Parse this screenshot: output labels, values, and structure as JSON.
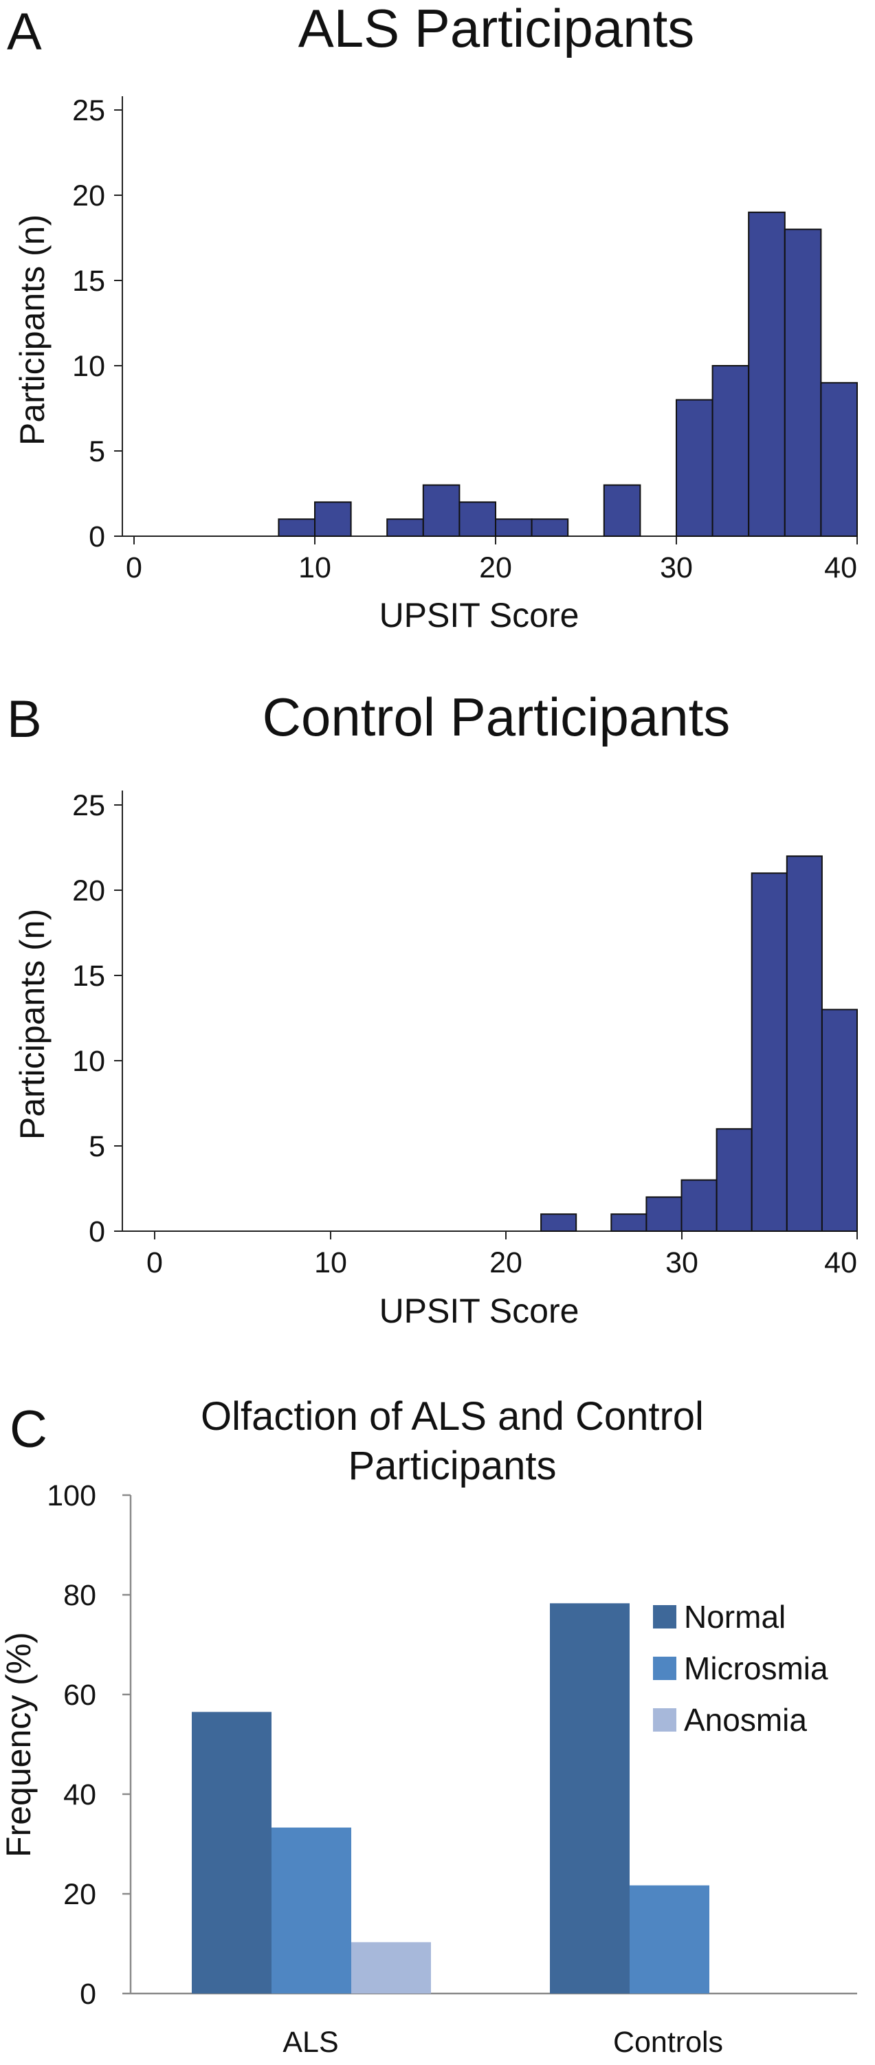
{
  "chart_data": [
    {
      "type": "bar",
      "panel": "A",
      "title": "ALS Participants",
      "xlabel": "UPSIT Score",
      "ylabel": "Participants (n)",
      "xlim": [
        0,
        40
      ],
      "ylim": [
        0,
        25
      ],
      "xticks": [
        "0",
        "10",
        "20",
        "30",
        "40"
      ],
      "yticks": [
        "0",
        "5",
        "10",
        "15",
        "20",
        "25"
      ],
      "bin_width": 2,
      "bins": [
        {
          "x0": 8,
          "x1": 10,
          "count": 1
        },
        {
          "x0": 10,
          "x1": 12,
          "count": 2
        },
        {
          "x0": 14,
          "x1": 16,
          "count": 1
        },
        {
          "x0": 16,
          "x1": 18,
          "count": 3
        },
        {
          "x0": 18,
          "x1": 20,
          "count": 2
        },
        {
          "x0": 20,
          "x1": 22,
          "count": 1
        },
        {
          "x0": 22,
          "x1": 24,
          "count": 1
        },
        {
          "x0": 26,
          "x1": 28,
          "count": 3
        },
        {
          "x0": 30,
          "x1": 32,
          "count": 8
        },
        {
          "x0": 32,
          "x1": 34,
          "count": 10
        },
        {
          "x0": 34,
          "x1": 36,
          "count": 19
        },
        {
          "x0": 36,
          "x1": 38,
          "count": 18
        },
        {
          "x0": 38,
          "x1": 40,
          "count": 9
        }
      ],
      "bar_color": "#3b4896",
      "grid": false
    },
    {
      "type": "bar",
      "panel": "B",
      "title": "Control Participants",
      "xlabel": "UPSIT Score",
      "ylabel": "Participants (n)",
      "xlim": [
        0,
        40
      ],
      "ylim": [
        0,
        25
      ],
      "xticks": [
        "0",
        "10",
        "20",
        "30",
        "40"
      ],
      "yticks": [
        "0",
        "5",
        "10",
        "15",
        "20",
        "25"
      ],
      "bin_width": 2,
      "bins": [
        {
          "x0": 22,
          "x1": 24,
          "count": 1
        },
        {
          "x0": 26,
          "x1": 28,
          "count": 1
        },
        {
          "x0": 28,
          "x1": 30,
          "count": 2
        },
        {
          "x0": 30,
          "x1": 32,
          "count": 3
        },
        {
          "x0": 32,
          "x1": 34,
          "count": 6
        },
        {
          "x0": 34,
          "x1": 36,
          "count": 21
        },
        {
          "x0": 36,
          "x1": 38,
          "count": 22
        },
        {
          "x0": 38,
          "x1": 40,
          "count": 13
        }
      ],
      "bar_color": "#3b4896",
      "grid": false
    },
    {
      "type": "bar",
      "panel": "C",
      "title": "Olfaction of ALS and Control Participants",
      "title_lines": [
        "Olfaction of ALS and Control",
        "Participants"
      ],
      "xlabel": "",
      "ylabel": "Frequency (%)",
      "ylim": [
        0,
        100
      ],
      "yticks": [
        "0",
        "20",
        "40",
        "60",
        "80",
        "100"
      ],
      "categories": [
        "ALS",
        "Controls"
      ],
      "series": [
        {
          "name": "Normal",
          "values": [
            56.5,
            78.3
          ],
          "color": "#3e6899"
        },
        {
          "name": "Microsmia",
          "values": [
            33.3,
            21.7
          ],
          "color": "#4f86c2"
        },
        {
          "name": "Anosmia",
          "values": [
            10.3,
            0
          ],
          "color": "#a7b8da"
        }
      ],
      "legend_position": "right",
      "grid": false
    }
  ]
}
